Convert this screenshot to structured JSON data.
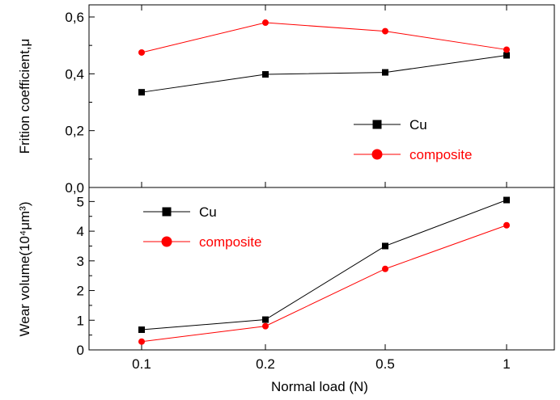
{
  "chart_data": [
    {
      "type": "line",
      "categories": [
        "0.1",
        "0.2",
        "0.5",
        "1"
      ],
      "xlabel": "",
      "ylabel": "Frition coefficient,μ",
      "ylim": [
        0.0,
        0.6
      ],
      "yticks": [
        "0,0",
        "0,2",
        "0,4",
        "0,6"
      ],
      "legend_position": "center-right",
      "series": [
        {
          "name": "Cu",
          "color": "#000000",
          "marker": "square",
          "values": [
            0.335,
            0.398,
            0.405,
            0.465
          ]
        },
        {
          "name": "composite",
          "color": "#ff0000",
          "marker": "circle",
          "values": [
            0.475,
            0.58,
            0.55,
            0.485
          ]
        }
      ]
    },
    {
      "type": "line",
      "categories": [
        "0.1",
        "0.2",
        "0.5",
        "1"
      ],
      "xlabel": "Normal load (N)",
      "ylabel": "Wear volume(10⁴μm³)",
      "ylim": [
        0,
        5.5
      ],
      "yticks": [
        "0",
        "1",
        "2",
        "3",
        "4",
        "5"
      ],
      "legend_position": "top-left",
      "series": [
        {
          "name": "Cu",
          "color": "#000000",
          "marker": "square",
          "values": [
            0.68,
            1.02,
            3.5,
            5.05
          ]
        },
        {
          "name": "composite",
          "color": "#ff0000",
          "marker": "circle",
          "values": [
            0.28,
            0.8,
            2.73,
            4.2
          ]
        }
      ]
    }
  ]
}
